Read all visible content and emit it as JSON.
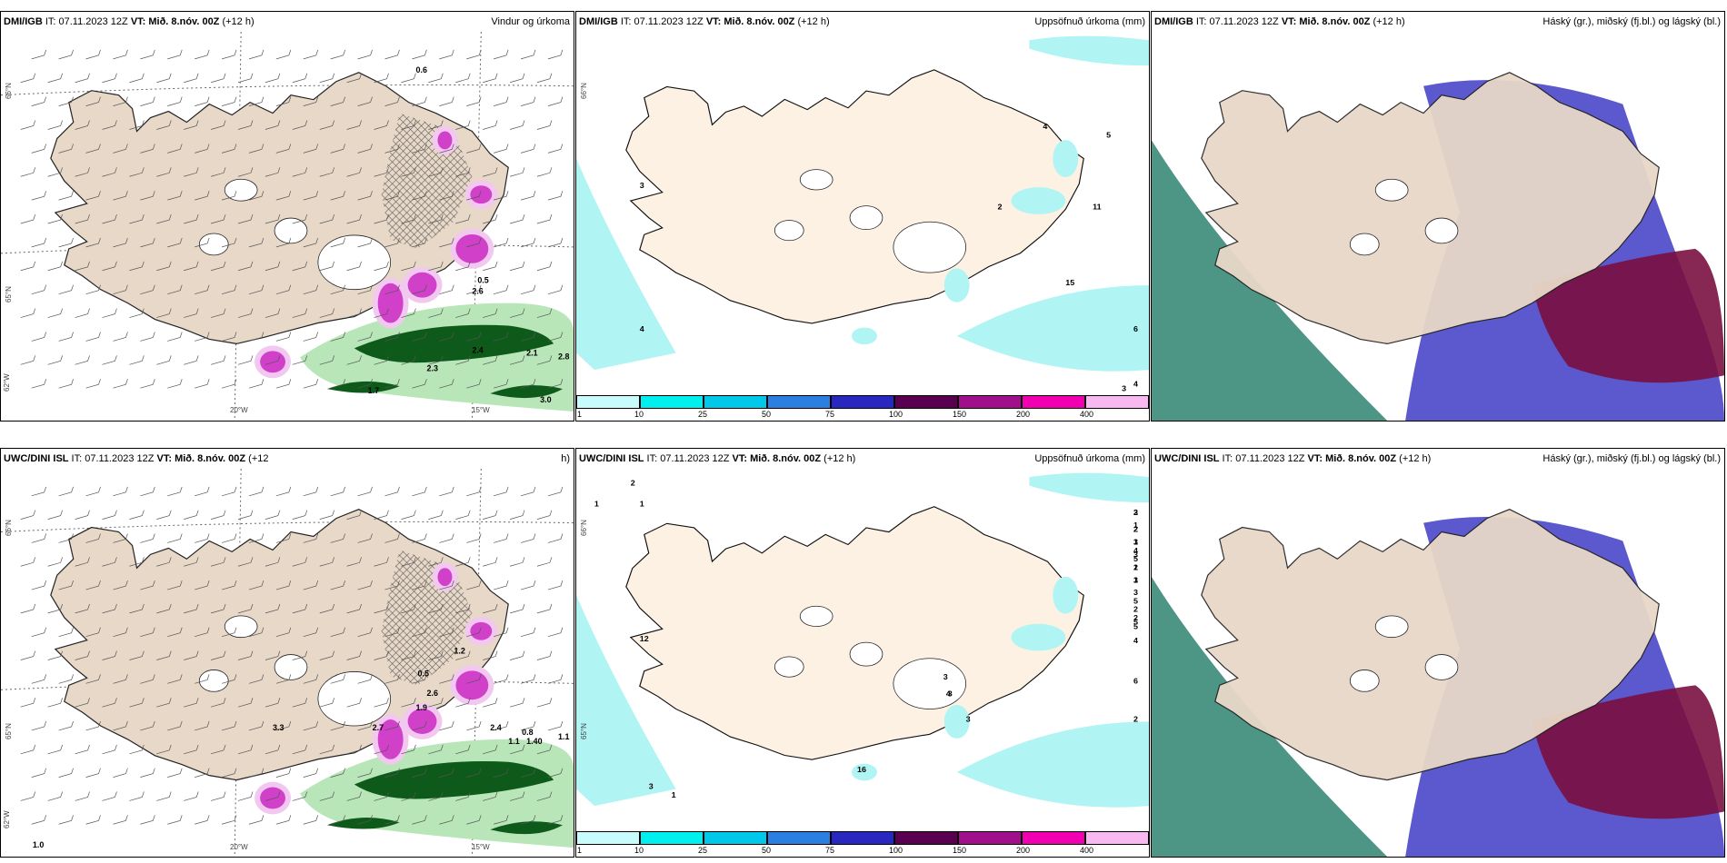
{
  "panels": [
    {
      "id": "p1",
      "left_prefix": "DMI/IGB",
      "left_it": " IT: 07.11.2023 12Z ",
      "left_vt": "VT: Mið. 8.nóv. 00Z",
      "left_suffix": " (+12 h)",
      "right": "Vindur og úrkoma",
      "type": "wind",
      "axes": [
        "66°N",
        "65°N",
        "20°W",
        "15°W",
        "62°W"
      ],
      "labels": [
        "0.6",
        "2.6",
        "2.4",
        "2.3",
        "2.1",
        "2.8",
        "1.7",
        "3.0",
        "0.5"
      ]
    },
    {
      "id": "p2",
      "left_prefix": "DMI/IGB",
      "left_it": " IT: 07.11.2023 12Z ",
      "left_vt": "VT: Mið. 8.nóv. 00Z",
      "left_suffix": " (+12 h)",
      "right": "Uppsöfnuð úrkoma (mm)",
      "type": "precip",
      "axes": [
        "66°N"
      ],
      "labels": [
        "4",
        "5",
        "2",
        "11",
        "3",
        "4",
        "6",
        "4",
        "3",
        "15"
      ]
    },
    {
      "id": "p3",
      "left_prefix": "DMI/IGB",
      "left_it": " IT: 07.11.2023 12Z ",
      "left_vt": "VT: Mið. 8.nóv. 00Z",
      "left_suffix": " (+12 h)",
      "right": "Háský (gr.), miðský (fj.bl.) og lágský (bl.)",
      "type": "cloud",
      "axes": [],
      "labels": []
    },
    {
      "id": "p4",
      "left_prefix": "UWC/DINI ISL",
      "left_it": " IT: 07.11.2023 12Z ",
      "left_vt": "VT: Mið. 8.nóv. 00Z",
      "left_suffix": " (+12",
      "right": "h)",
      "type": "wind",
      "axes": [
        "66°N",
        "65°N",
        "20°W",
        "15°W",
        "62°W"
      ],
      "labels": [
        "1.0",
        "2.6",
        "1.9",
        "2.7",
        "2.4",
        "1.1",
        "1.40",
        "0.8",
        "1.1",
        "3.3",
        "0.5",
        "1.2"
      ]
    },
    {
      "id": "p5",
      "left_prefix": "UWC/DINI ISL",
      "left_it": " IT: 07.11.2023 12Z ",
      "left_vt": "VT: Mið. 8.nóv. 00Z",
      "left_suffix": " (+12 h)",
      "right": "Uppsöfnuð úrkoma (mm)",
      "type": "precip",
      "axes": [
        "66°N",
        "65°N"
      ],
      "labels": [
        "2",
        "1",
        "1",
        "2",
        "3",
        "2",
        "2",
        "1",
        "3",
        "5",
        "4",
        "3",
        "2",
        "1",
        "1",
        "3",
        "3",
        "2",
        "5",
        "2",
        "5",
        "5",
        "4",
        "1",
        "12",
        "3",
        "3",
        "6",
        "3",
        "4",
        "2",
        "3",
        "1",
        "16"
      ]
    },
    {
      "id": "p6",
      "left_prefix": "UWC/DINI ISL",
      "left_it": " IT: 07.11.2023 12Z ",
      "left_vt": "VT: Mið. 8.nóv. 00Z",
      "left_suffix": " (+12 h)",
      "right": "Háský (gr.), miðský (fj.bl.) og lágský (bl.)",
      "type": "cloud",
      "axes": [],
      "labels": []
    }
  ],
  "colorbar": {
    "ticks": [
      "1",
      "10",
      "25",
      "50",
      "75",
      "100",
      "150",
      "200",
      "400"
    ],
    "colors": [
      "#c8fbfb",
      "#00f0f0",
      "#00c8e8",
      "#2a7fe0",
      "#2828c0",
      "#5a0050",
      "#a0108a",
      "#f000b0",
      "#f8b8f0"
    ]
  },
  "palette": {
    "land": "#e8d8c8",
    "land_precip": "#fdf1e4",
    "sea": "#ffffff",
    "cyan": "#b0f4f4",
    "green_dark": "#0e5a1a",
    "green_mid": "#3a9a4a",
    "green_light": "#b8e6b8",
    "magenta": "#d040c8",
    "lilac": "#f2c8f0",
    "blue_cloud": "#4a46c8",
    "maroon": "#7a1040",
    "teal": "#3a8a78"
  }
}
